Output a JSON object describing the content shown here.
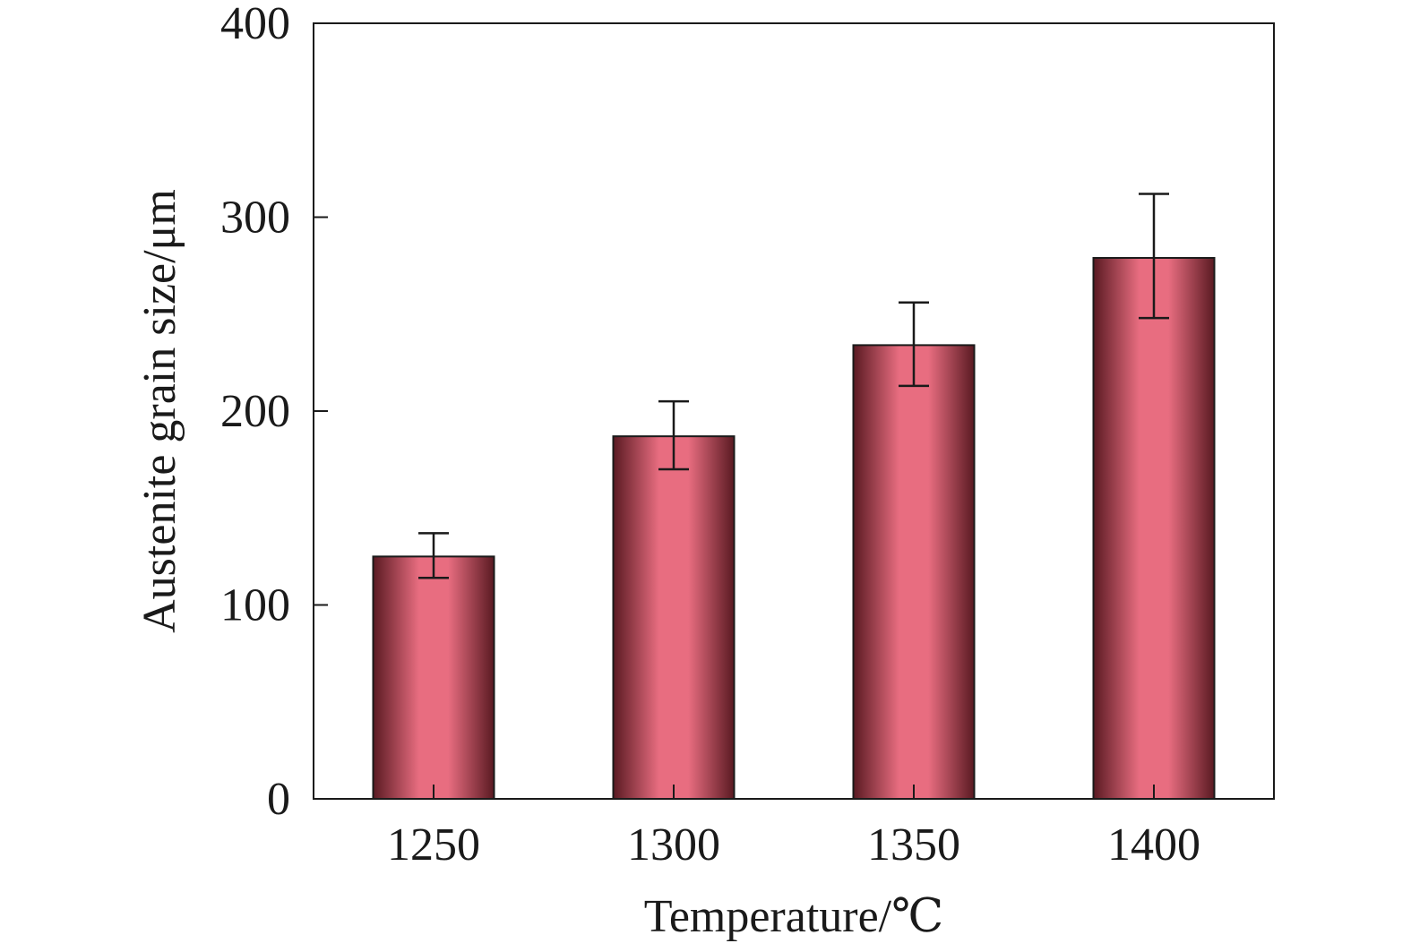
{
  "chart_data": {
    "type": "bar",
    "categories": [
      "1250",
      "1300",
      "1350",
      "1400"
    ],
    "series": [
      {
        "values": [
          125,
          187,
          234,
          279
        ],
        "error_low": [
          114,
          170,
          213,
          248
        ],
        "error_high": [
          137,
          205,
          256,
          312
        ]
      }
    ],
    "xlabel": "Temperature/℃",
    "ylabel": "Austenite grain size/μm",
    "ylim": [
      0,
      400
    ],
    "yticks": [
      "0",
      "100",
      "200",
      "300",
      "400"
    ],
    "grid": false,
    "legend": "none",
    "colors": {
      "bar_edge": "#5a1a22",
      "bar_center": "#e86d80",
      "bar_outline": "#1a1a1a",
      "axis": "#1a1a1a"
    }
  }
}
